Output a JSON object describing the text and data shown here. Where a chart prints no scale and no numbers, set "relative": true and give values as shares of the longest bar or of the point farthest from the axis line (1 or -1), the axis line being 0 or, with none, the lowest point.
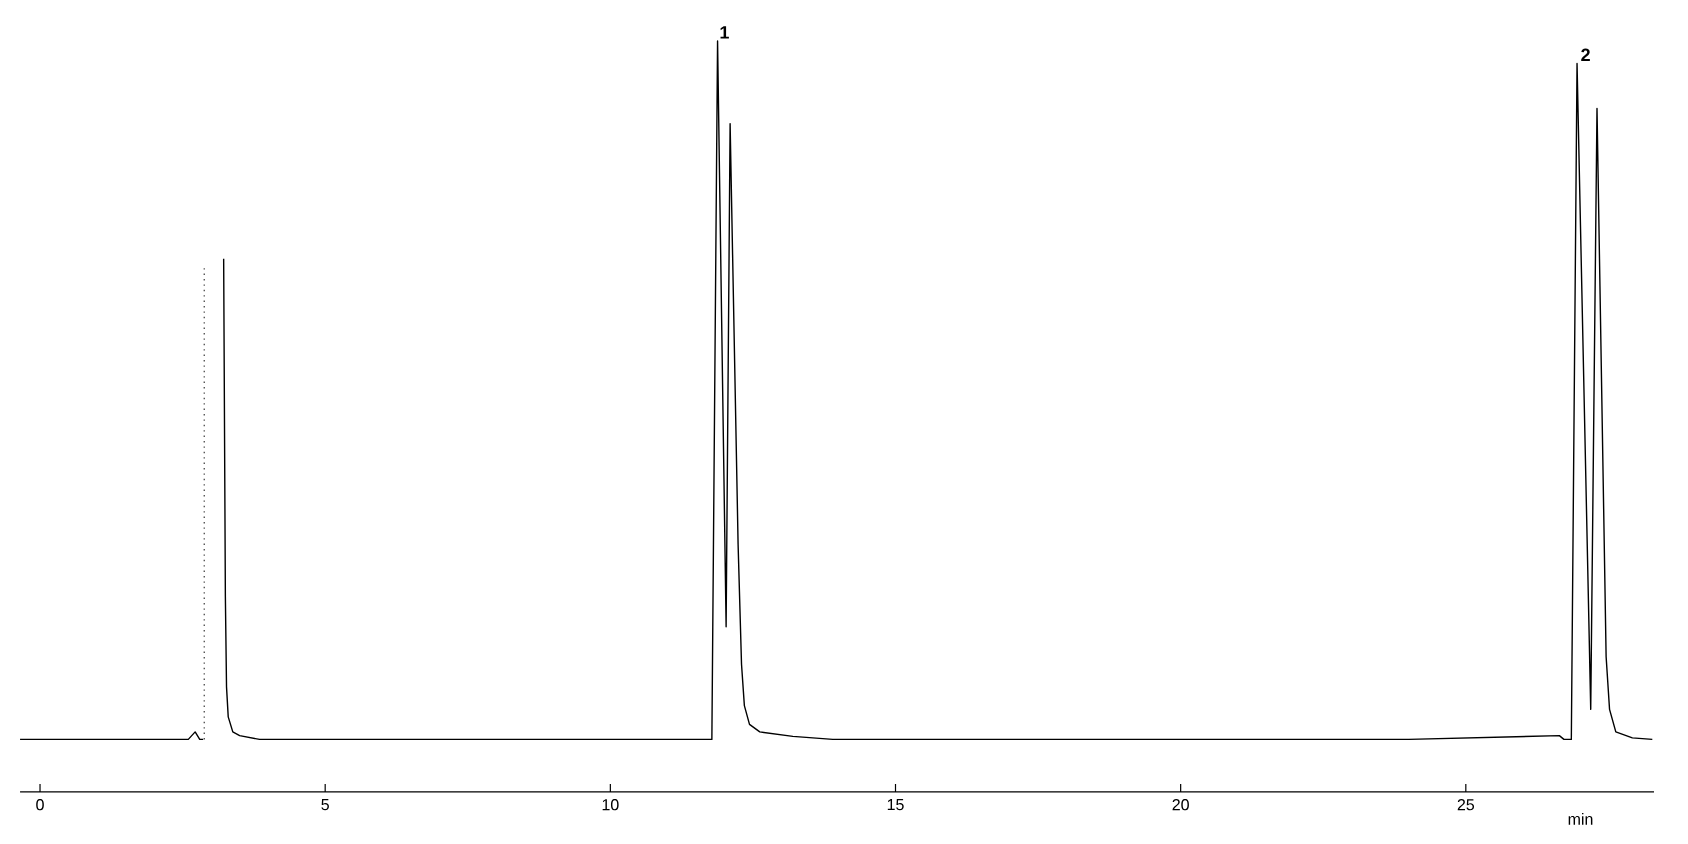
{
  "chart_data": {
    "type": "line",
    "relative": true,
    "xlabel": "min",
    "xlim": [
      -0.35,
      28.3
    ],
    "xticks": [
      0,
      5,
      10,
      15,
      20,
      25
    ],
    "annotations": [
      {
        "text": "1",
        "x": 12.0,
        "y": 1.0
      },
      {
        "text": "2",
        "x": 27.1,
        "y": 0.97
      }
    ],
    "series": [
      {
        "color": "#000000",
        "x": [
          -0.35,
          1.0,
          2.0,
          2.6,
          2.72,
          2.8,
          2.86,
          3.0,
          3.22,
          3.25,
          3.27,
          3.3,
          3.38,
          3.5,
          3.85,
          6.0,
          9.0,
          11.78,
          11.88,
          12.03,
          12.1,
          12.24,
          12.3,
          12.35,
          12.44,
          12.62,
          13.2,
          13.9,
          17.0,
          20.0,
          24.0,
          26.64,
          26.72,
          26.85,
          26.95,
          27.19,
          27.3,
          27.46,
          27.52,
          27.63,
          27.92,
          28.27
        ],
        "values": [
          0.07,
          0.07,
          0.07,
          0.07,
          0.08,
          0.07,
          0.07,
          null,
          0.71,
          0.26,
          0.14,
          0.1,
          0.08,
          0.075,
          0.07,
          0.07,
          0.07,
          0.07,
          1.0,
          0.22,
          0.89,
          0.33,
          0.17,
          0.115,
          0.09,
          0.08,
          0.074,
          0.07,
          0.07,
          0.07,
          0.07,
          0.075,
          0.07,
          0.07,
          0.97,
          0.11,
          0.91,
          0.18,
          0.11,
          0.08,
          0.072,
          0.07
        ]
      },
      {
        "color": "#555555",
        "line_style": "dotted",
        "x": [
          2.88,
          2.88
        ],
        "values": [
          0.07,
          0.7
        ]
      }
    ]
  }
}
